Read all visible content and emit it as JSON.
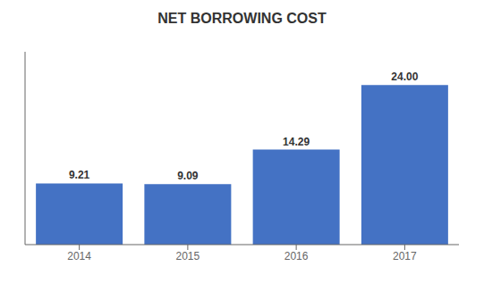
{
  "chart_data": {
    "type": "bar",
    "title": "NET BORROWING COST",
    "categories": [
      "2014",
      "2015",
      "2016",
      "2017"
    ],
    "values": [
      9.21,
      9.09,
      14.29,
      24.0
    ],
    "value_labels": [
      "9.21",
      "9.09",
      "14.29",
      "24.00"
    ],
    "data_labels": true,
    "color": "#4472C4",
    "ylim": [
      0,
      29
    ],
    "tick_labels": "x",
    "grid": false
  }
}
